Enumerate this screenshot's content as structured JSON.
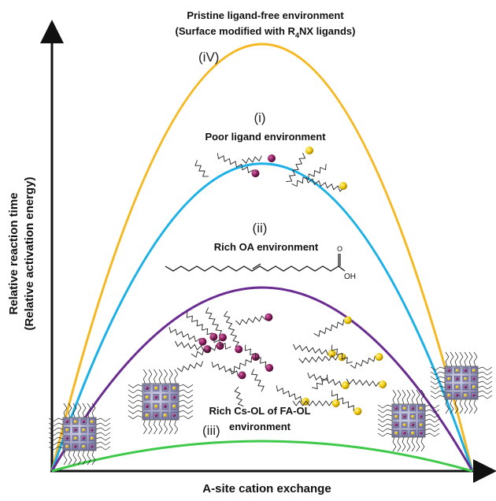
{
  "figure": {
    "x_axis_label": "A-site cation exchange",
    "y_axis_label_line1": "Relative reaction time",
    "y_axis_label_line2": "(Relative activation energy)"
  },
  "curves": [
    {
      "id": "iv",
      "roman": "(iV)",
      "title_line1": "Pristine ligand-free environment",
      "title_line2_prefix": "(Surface modified with R",
      "title_line2_sub": "4",
      "title_line2_suffix": "NX ligands)",
      "color": "#f5b820",
      "relative_peak": 1.0
    },
    {
      "id": "i",
      "roman": "(i)",
      "title": "Poor ligand environment",
      "color": "#1bb0e6",
      "relative_peak": 0.72
    },
    {
      "id": "ii",
      "roman": "(ii)",
      "title": "Rich OA environment",
      "molecule_label": "OH",
      "color": "#6a2c91",
      "relative_peak": 0.43
    },
    {
      "id": "iii",
      "roman": "(iii)",
      "title_line1": "Rich Cs-OL of FA-OL",
      "title_line2": "environment",
      "color": "#3ec94a",
      "relative_peak": 0.07
    }
  ]
}
